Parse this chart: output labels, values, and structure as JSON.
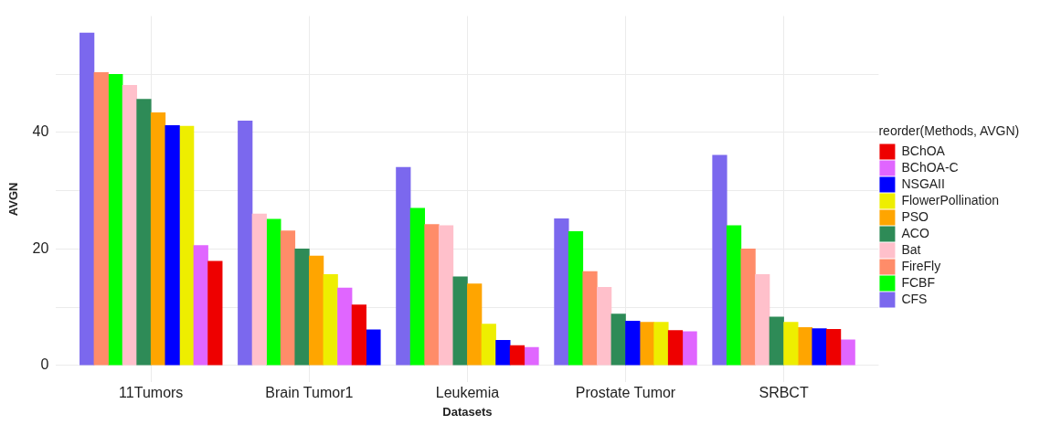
{
  "chart_data": {
    "type": "bar",
    "xlabel": "Datasets",
    "ylabel": "AVGN",
    "legend_title": "reorder(Methods, AVGN)",
    "categories": [
      "11Tumors",
      "Brain Tumor1",
      "Leukemia",
      "Prostate Tumor",
      "SRBCT"
    ],
    "series": [
      {
        "name": "BChOA",
        "color": "#ee0000",
        "values": [
          17.9,
          10.4,
          3.4,
          6.0,
          6.2
        ]
      },
      {
        "name": "BChOA-C",
        "color": "#e066ff",
        "values": [
          20.6,
          13.3,
          3.1,
          5.8,
          4.4
        ]
      },
      {
        "name": "NSGAII",
        "color": "#0000ff",
        "values": [
          41.2,
          6.1,
          4.3,
          7.6,
          6.3
        ]
      },
      {
        "name": "FlowerPollination",
        "color": "#eeee00",
        "values": [
          41.1,
          15.6,
          7.1,
          7.4,
          7.4
        ]
      },
      {
        "name": "PSO",
        "color": "#ffa500",
        "values": [
          43.4,
          18.8,
          14.0,
          7.4,
          6.5
        ]
      },
      {
        "name": "ACO",
        "color": "#2e8b57",
        "values": [
          45.7,
          20.0,
          15.2,
          8.8,
          8.3
        ]
      },
      {
        "name": "Bat",
        "color": "#ffc0cb",
        "values": [
          48.1,
          26.0,
          24.0,
          13.4,
          15.6
        ]
      },
      {
        "name": "FireFly",
        "color": "#ff8c69",
        "values": [
          50.3,
          23.1,
          24.2,
          16.1,
          20.0
        ]
      },
      {
        "name": "FCBF",
        "color": "#00ff00",
        "values": [
          50.0,
          25.1,
          27.0,
          23.0,
          24.0
        ]
      },
      {
        "name": "CFS",
        "color": "#7b68ee",
        "values": [
          57.1,
          42.0,
          34.0,
          25.2,
          36.1
        ]
      }
    ],
    "ylim": [
      -2.9,
      60
    ],
    "yticks": [
      0,
      {
        "value": 10,
        "label": null
      },
      20,
      {
        "value": 30,
        "label": null
      },
      40,
      {
        "value": 50,
        "label": null
      }
    ],
    "grid": true,
    "legend": "right"
  }
}
